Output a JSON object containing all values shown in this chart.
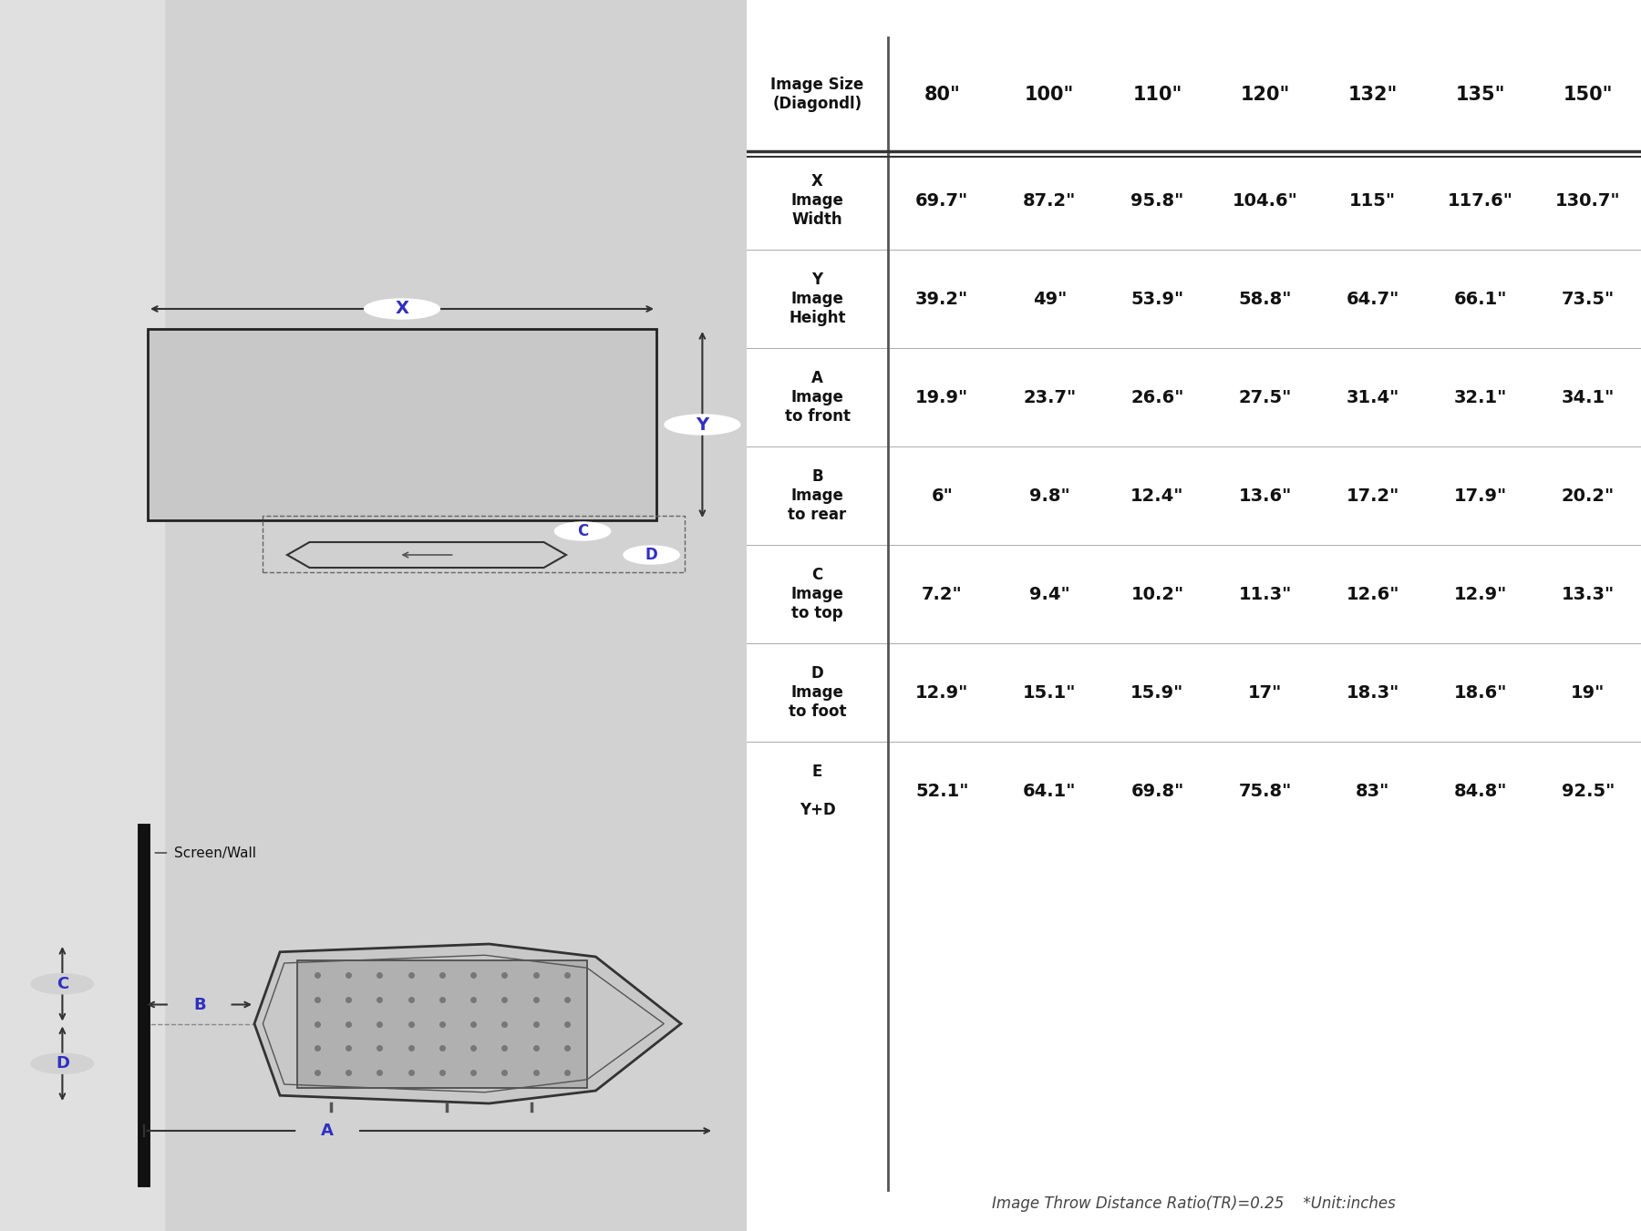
{
  "header_row": [
    "Image Size\n(Diagondl)",
    "80\"",
    "100\"",
    "110\"",
    "120\"",
    "132\"",
    "135\"",
    "150\""
  ],
  "rows": [
    {
      "label": "X\nImage\nWidth",
      "values": [
        "69.7\"",
        "87.2\"",
        "95.8\"",
        "104.6\"",
        "115\"",
        "117.6\"",
        "130.7\""
      ]
    },
    {
      "label": "Y\nImage\nHeight",
      "values": [
        "39.2\"",
        "49\"",
        "53.9\"",
        "58.8\"",
        "64.7\"",
        "66.1\"",
        "73.5\""
      ]
    },
    {
      "label": "A\nImage\nto front",
      "values": [
        "19.9\"",
        "23.7\"",
        "26.6\"",
        "27.5\"",
        "31.4\"",
        "32.1\"",
        "34.1\""
      ]
    },
    {
      "label": "B\nImage\nto rear",
      "values": [
        "6\"",
        "9.8\"",
        "12.4\"",
        "13.6\"",
        "17.2\"",
        "17.9\"",
        "20.2\""
      ]
    },
    {
      "label": "C\nImage\nto top",
      "values": [
        "7.2\"",
        "9.4\"",
        "10.2\"",
        "11.3\"",
        "12.6\"",
        "12.9\"",
        "13.3\""
      ]
    },
    {
      "label": "D\nImage\nto foot",
      "values": [
        "12.9\"",
        "15.1\"",
        "15.9\"",
        "17\"",
        "18.3\"",
        "18.6\"",
        "19\""
      ]
    },
    {
      "label": "E\n\nY+D",
      "values": [
        "52.1\"",
        "64.1\"",
        "69.8\"",
        "75.8\"",
        "83\"",
        "84.8\"",
        "92.5\""
      ]
    }
  ],
  "footer_text": "Image Throw Distance Ratio(TR)=0.25    *Unit:inches",
  "label_color": "#3030c0",
  "bg_dark": "#c0c0c0",
  "bg_medium": "#cccccc",
  "bg_light": "#d8d8d8"
}
